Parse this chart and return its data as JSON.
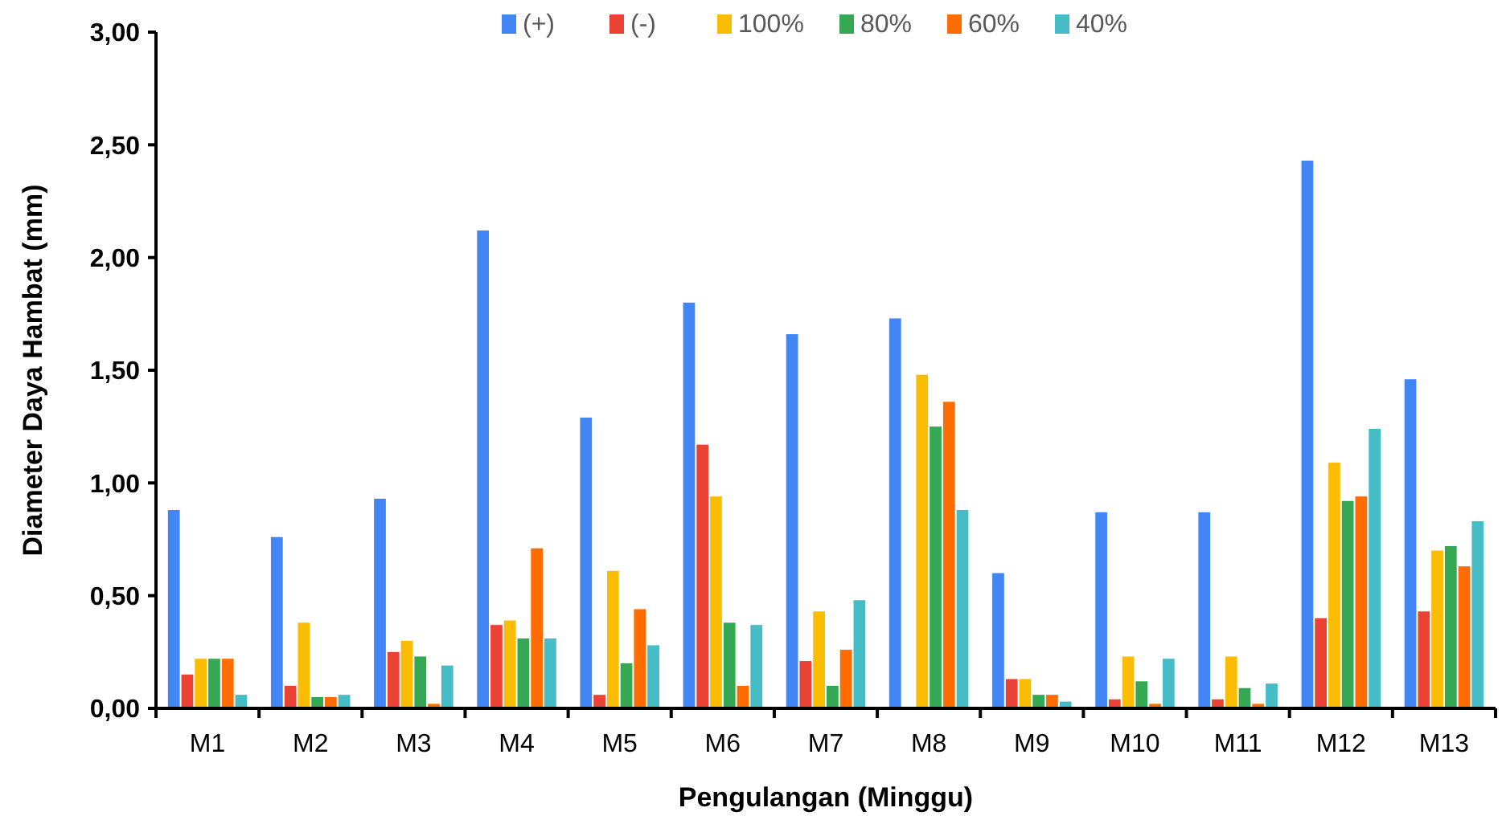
{
  "chart_data": {
    "type": "bar",
    "xlabel": "Pengulangan (Minggu)",
    "ylabel": "Diameter Daya Hambat (mm)",
    "categories": [
      "M1",
      "M2",
      "M3",
      "M4",
      "M5",
      "M6",
      "M7",
      "M8",
      "M9",
      "M10",
      "M11",
      "M12",
      "M13"
    ],
    "ylim": [
      0,
      3
    ],
    "yticks": [
      {
        "value": 0,
        "label": "0,00"
      },
      {
        "value": 0.5,
        "label": "0,50"
      },
      {
        "value": 1,
        "label": "1,00"
      },
      {
        "value": 1.5,
        "label": "1,50"
      },
      {
        "value": 2,
        "label": "2,00"
      },
      {
        "value": 2.5,
        "label": "2,50"
      },
      {
        "value": 3,
        "label": "3,00"
      }
    ],
    "legend": "top",
    "grid": false,
    "series": [
      {
        "name": "(+)",
        "color": "#4285f4",
        "values": [
          0.88,
          0.76,
          0.93,
          2.12,
          1.29,
          1.8,
          1.66,
          1.73,
          0.6,
          0.87,
          0.87,
          2.43,
          1.46
        ]
      },
      {
        "name": "(-)",
        "color": "#ea4335",
        "values": [
          0.15,
          0.1,
          0.25,
          0.37,
          0.06,
          1.17,
          0.21,
          0,
          0.13,
          0.04,
          0.04,
          0.4,
          0.43
        ]
      },
      {
        "name": "100%",
        "color": "#fbbc04",
        "values": [
          0.22,
          0.38,
          0.3,
          0.39,
          0.61,
          0.94,
          0.43,
          1.48,
          0.13,
          0.23,
          0.23,
          1.09,
          0.7
        ]
      },
      {
        "name": "80%",
        "color": "#34a853",
        "values": [
          0.22,
          0.05,
          0.23,
          0.31,
          0.2,
          0.38,
          0.1,
          1.25,
          0.06,
          0.12,
          0.09,
          0.92,
          0.72
        ]
      },
      {
        "name": "60%",
        "color": "#ff6d01",
        "values": [
          0.22,
          0.05,
          0.02,
          0.71,
          0.44,
          0.1,
          0.26,
          1.36,
          0.06,
          0.02,
          0.02,
          0.94,
          0.63
        ]
      },
      {
        "name": "40%",
        "color": "#46bdc6",
        "values": [
          0.06,
          0.06,
          0.19,
          0.31,
          0.28,
          0.37,
          0.48,
          0.88,
          0.03,
          0.22,
          0.11,
          1.24,
          0.83
        ]
      }
    ]
  }
}
